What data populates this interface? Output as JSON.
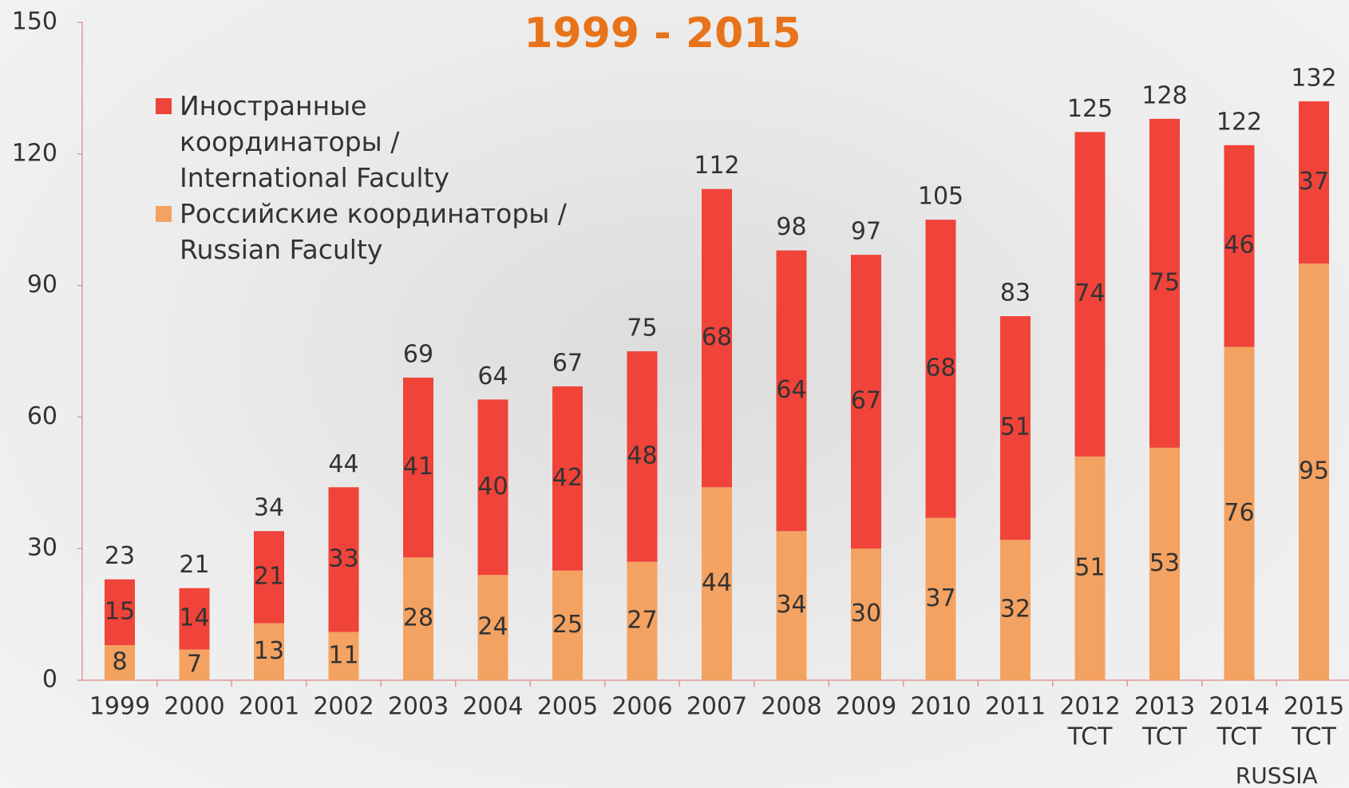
{
  "chart_data": {
    "type": "stacked_bar",
    "title": "1999 - 2015",
    "categories": [
      "1999",
      "2000",
      "2001",
      "2002",
      "2003",
      "2004",
      "2005",
      "2006",
      "2007",
      "2008",
      "2009",
      "2010",
      "2011",
      "2012",
      "2013",
      "2014",
      "2015"
    ],
    "category_sublabels": [
      null,
      null,
      null,
      null,
      null,
      null,
      null,
      null,
      null,
      null,
      null,
      null,
      null,
      "TCT",
      "TCT",
      "TCT",
      "TCT"
    ],
    "group_label": "RUSSIA",
    "series": [
      {
        "name": "Российские координаторы / Russian Faculty",
        "color": "#f4a261",
        "values": [
          8,
          7,
          13,
          11,
          28,
          24,
          25,
          27,
          44,
          34,
          30,
          37,
          32,
          51,
          53,
          76,
          95
        ]
      },
      {
        "name": "Иностранные координаторы / International Faculty",
        "color": "#f0433a",
        "values": [
          15,
          14,
          21,
          33,
          41,
          40,
          42,
          48,
          68,
          64,
          67,
          68,
          51,
          74,
          75,
          46,
          37
        ]
      }
    ],
    "totals": [
      23,
      21,
      34,
      44,
      69,
      64,
      67,
      75,
      112,
      98,
      97,
      105,
      83,
      125,
      128,
      122,
      132
    ],
    "ylim": [
      0,
      150
    ],
    "yticks": [
      0,
      30,
      60,
      90,
      120,
      150
    ],
    "grid": false
  }
}
